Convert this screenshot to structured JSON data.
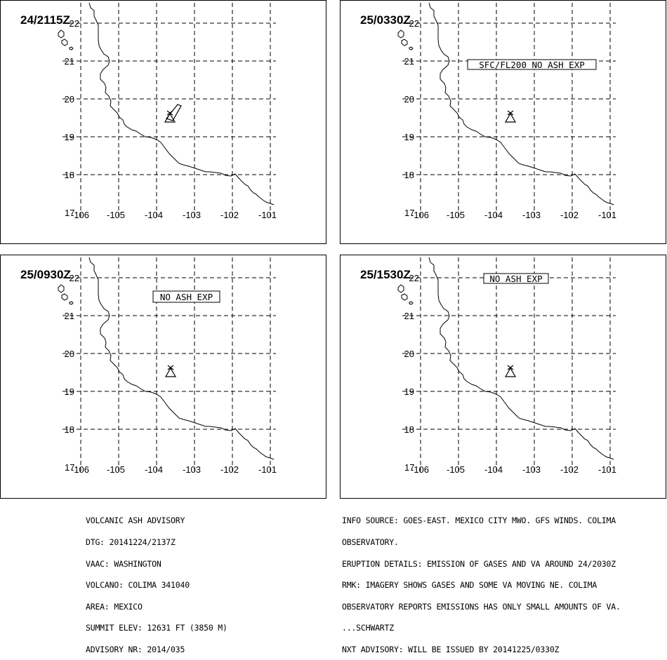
{
  "colors": {
    "line": "#000000",
    "background": "#ffffff"
  },
  "map": {
    "lat_labels": [
      "21",
      "20",
      "19",
      "18"
    ],
    "lat_top_label": "22",
    "lat_bottom_label": "17",
    "lon_labels": [
      "-105",
      "-104",
      "-103",
      "-102",
      "-101"
    ],
    "lon_first_label": "-106",
    "volcano_icon": "volcano-triangle-icon"
  },
  "panels": [
    {
      "time": "24/2115Z",
      "annotation": ""
    },
    {
      "time": "25/0330Z",
      "annotation": "SFC/FL200 NO ASH EXP"
    },
    {
      "time": "25/0930Z",
      "annotation": "NO ASH EXP"
    },
    {
      "time": "25/1530Z",
      "annotation": "NO ASH EXP"
    }
  ],
  "advisory_left": [
    "VOLCANIC ASH ADVISORY",
    "DTG: 20141224/2137Z",
    "VAAC: WASHINGTON",
    "VOLCANO: COLIMA 341040",
    "AREA: MEXICO",
    "SUMMIT ELEV: 12631 FT (3850 M)",
    "ADVISORY NR: 2014/035"
  ],
  "advisory_right": [
    "INFO SOURCE: GOES-EAST. MEXICO CITY MWO. GFS WINDS. COLIMA",
    "OBSERVATORY.",
    "ERUPTION DETAILS: EMISSION OF GASES AND VA AROUND 24/2030Z",
    "RMK: IMAGERY SHOWS GASES AND SOME VA MOVING NE. COLIMA",
    "OBSERVATORY REPORTS EMISSIONS HAS ONLY SMALL AMOUNTS OF VA.",
    "...SCHWARTZ",
    "NXT ADVISORY: WILL BE ISSUED BY 20141225/0330Z"
  ]
}
